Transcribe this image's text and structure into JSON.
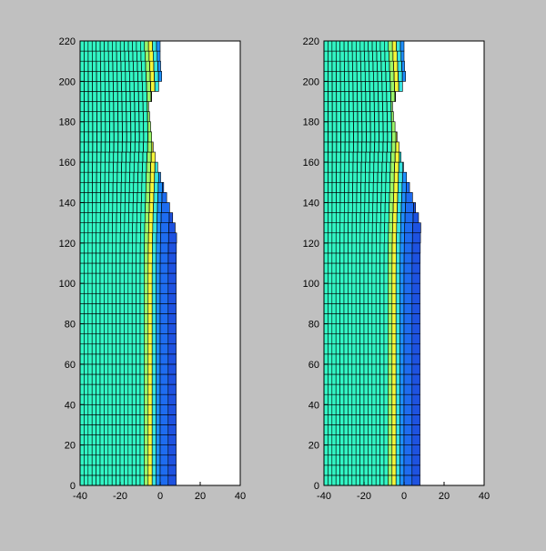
{
  "figure": {
    "background": "#c0c0c0",
    "axes_background": "#ffffff"
  },
  "colormap": [
    "#00008f",
    "#0000ff",
    "#0080ff",
    "#00ffff",
    "#80ff80",
    "#ffff00",
    "#ff8000",
    "#ff0000",
    "#800000"
  ],
  "chart_data": [
    {
      "type": "heatmap",
      "xlim": [
        -40,
        40
      ],
      "ylim": [
        0,
        220
      ],
      "xticks": [
        "-40",
        "-20",
        "0",
        "20",
        "40"
      ],
      "yticks": [
        "0",
        "20",
        "40",
        "60",
        "80",
        "100",
        "120",
        "140",
        "160",
        "180",
        "200",
        "220"
      ],
      "mesh_columns": 10,
      "mesh_rows": 44,
      "column_colors": [
        "#32f5c4",
        "#32f5c4",
        "#32f5c4",
        "#32f5c4",
        "#32f5c4",
        "#32f5c4",
        "#32f5c4",
        "#32f5c4",
        "#32f5c4",
        "#32f5c4",
        "#32f5c4",
        "#32f5c4",
        "#32f5c4",
        "#32f5c4",
        "#32f5c4",
        "#32f5c4",
        "#9af56a",
        "#f5f53a",
        "#38e3e0",
        "#1e8fff",
        "#1e6cf0",
        "#1e52e0"
      ],
      "column_bounds_x": [
        -40,
        -38,
        -36,
        -34,
        -32,
        -30,
        -28,
        -26,
        -24,
        -22,
        -20,
        -18,
        -16,
        -14,
        -12,
        -10,
        -8,
        -6,
        -4,
        -2,
        0,
        4,
        8
      ],
      "profile_x": [
        [
          0,
          6
        ],
        [
          20,
          7
        ],
        [
          40,
          7
        ],
        [
          60,
          7
        ],
        [
          80,
          7
        ],
        [
          100,
          7
        ],
        [
          120,
          8
        ],
        [
          140,
          10
        ],
        [
          160,
          11
        ],
        [
          170,
          12
        ],
        [
          180,
          11
        ],
        [
          190,
          10
        ],
        [
          200,
          9
        ],
        [
          210,
          8
        ],
        [
          220,
          7
        ]
      ],
      "surface_x": [
        [
          0,
          14
        ],
        [
          20,
          14
        ],
        [
          40,
          14
        ],
        [
          60,
          14
        ],
        [
          80,
          14
        ],
        [
          100,
          13
        ],
        [
          110,
          11
        ],
        [
          120,
          9
        ],
        [
          130,
          7
        ],
        [
          140,
          4
        ],
        [
          150,
          1
        ],
        [
          160,
          -2
        ],
        [
          170,
          -4
        ],
        [
          180,
          -5
        ],
        [
          190,
          -6
        ],
        [
          200,
          1
        ],
        [
          210,
          0
        ],
        [
          220,
          0
        ]
      ]
    },
    {
      "type": "heatmap",
      "xlim": [
        -40,
        40
      ],
      "ylim": [
        0,
        220
      ],
      "xticks": [
        "-40",
        "-20",
        "0",
        "20",
        "40"
      ],
      "yticks": [
        "0",
        "20",
        "40",
        "60",
        "80",
        "100",
        "120",
        "140",
        "160",
        "180",
        "200",
        "220"
      ],
      "mesh_columns": 10,
      "mesh_rows": 44,
      "column_colors": [
        "#32f5c4",
        "#32f5c4",
        "#32f5c4",
        "#32f5c4",
        "#32f5c4",
        "#32f5c4",
        "#32f5c4",
        "#32f5c4",
        "#32f5c4",
        "#32f5c4",
        "#32f5c4",
        "#32f5c4",
        "#32f5c4",
        "#32f5c4",
        "#32f5c4",
        "#32f5c4",
        "#9af56a",
        "#f5f53a",
        "#38e3e0",
        "#1e8fff",
        "#1e6cf0",
        "#1e52e0"
      ],
      "column_bounds_x": [
        -40,
        -38,
        -36,
        -34,
        -32,
        -30,
        -28,
        -26,
        -24,
        -22,
        -20,
        -18,
        -16,
        -14,
        -12,
        -10,
        -8,
        -6,
        -4,
        -2,
        0,
        4,
        8
      ],
      "profile_x": [
        [
          0,
          6
        ],
        [
          20,
          7
        ],
        [
          40,
          7
        ],
        [
          60,
          7
        ],
        [
          80,
          7
        ],
        [
          100,
          7
        ],
        [
          120,
          8
        ],
        [
          140,
          10
        ],
        [
          160,
          11
        ],
        [
          170,
          12
        ],
        [
          180,
          11
        ],
        [
          190,
          10
        ],
        [
          200,
          9
        ],
        [
          210,
          8
        ],
        [
          220,
          7
        ]
      ],
      "surface_x": [
        [
          0,
          14
        ],
        [
          20,
          14
        ],
        [
          40,
          14
        ],
        [
          60,
          14
        ],
        [
          80,
          14
        ],
        [
          100,
          13
        ],
        [
          110,
          12
        ],
        [
          120,
          10
        ],
        [
          130,
          8
        ],
        [
          140,
          5
        ],
        [
          150,
          2
        ],
        [
          160,
          -1
        ],
        [
          170,
          -3
        ],
        [
          180,
          -5
        ],
        [
          190,
          -6
        ],
        [
          200,
          1
        ],
        [
          210,
          0
        ],
        [
          220,
          0
        ]
      ]
    }
  ]
}
